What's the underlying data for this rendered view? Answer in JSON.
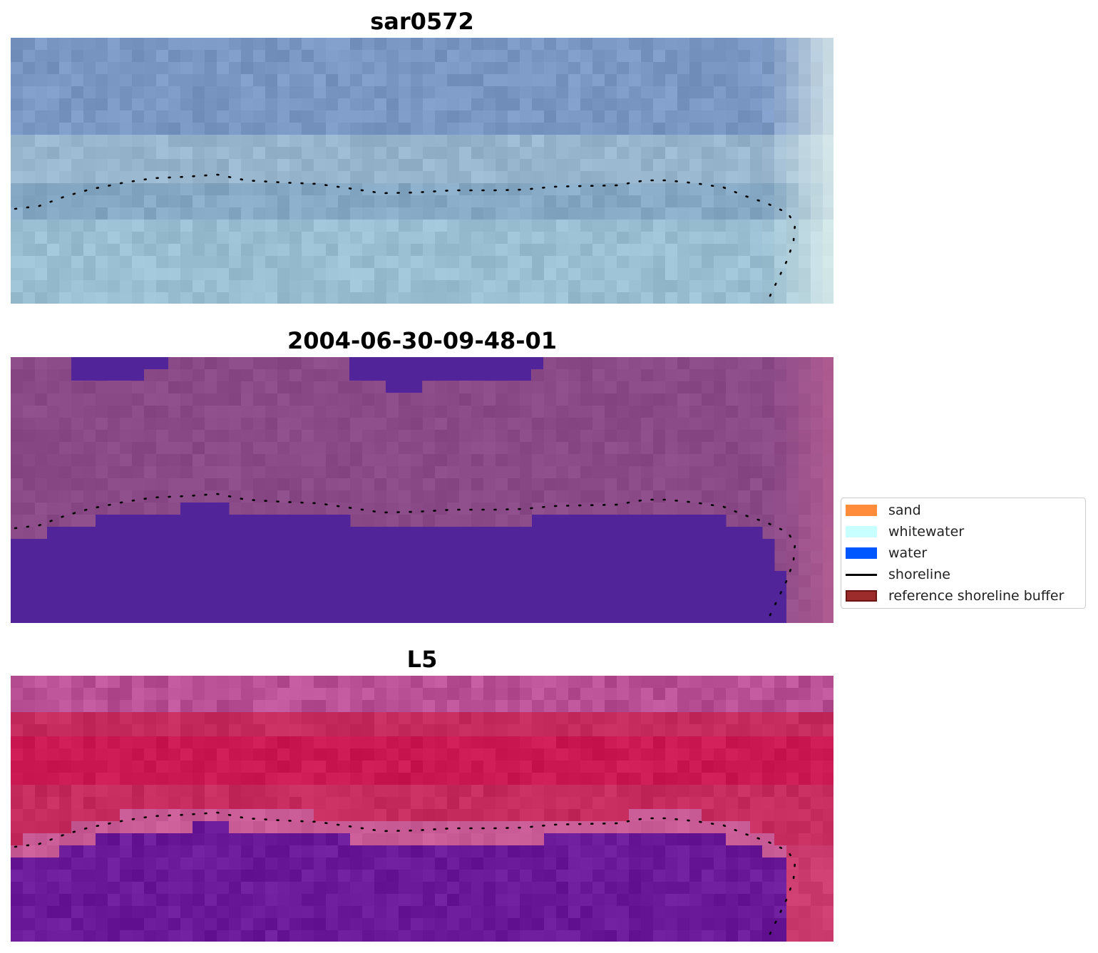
{
  "panels": [
    {
      "title": "sar0572"
    },
    {
      "title": "2004-06-30-09-48-01"
    },
    {
      "title": "L5"
    }
  ],
  "legend": {
    "items": [
      {
        "label": "sand",
        "color": "#ff8c3b",
        "kind": "patch"
      },
      {
        "label": "whitewater",
        "color": "#c8ffff",
        "kind": "patch"
      },
      {
        "label": "water",
        "color": "#0057ff",
        "kind": "patch"
      },
      {
        "label": "shoreline",
        "color": "#000000",
        "kind": "line"
      },
      {
        "label": "reference shoreline buffer",
        "color": "#9c2b2b",
        "kind": "patch"
      }
    ]
  },
  "colors": {
    "panel1_base": "#86a9c6",
    "panel2_base": "#8a4a87",
    "panel2_water": "#51249a",
    "panel3_base": "#c62b5e",
    "panel3_water": "#6a1a98"
  }
}
